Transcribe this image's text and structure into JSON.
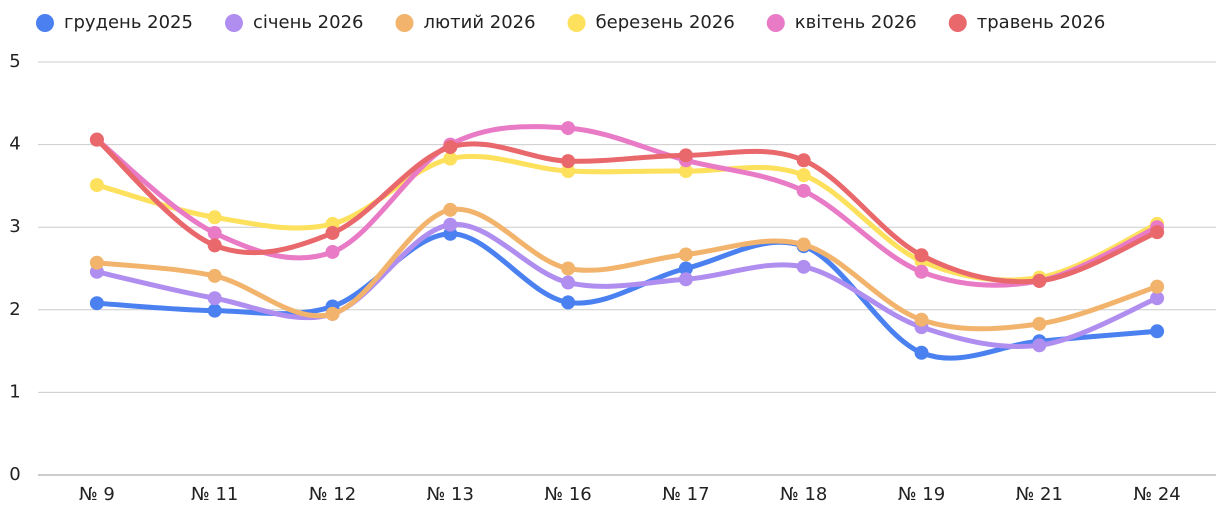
{
  "chart_data": {
    "type": "line",
    "categories": [
      "№ 9",
      "№ 11",
      "№ 12",
      "№ 13",
      "№ 16",
      "№ 17",
      "№ 18",
      "№ 19",
      "№ 21",
      "№ 24"
    ],
    "series": [
      {
        "name": "грудень 2025",
        "color": "#4a80f0",
        "values": [
          2.08,
          1.99,
          2.04,
          2.92,
          2.09,
          2.5,
          2.77,
          1.48,
          1.62,
          1.74
        ]
      },
      {
        "name": "січень 2026",
        "color": "#b08ef0",
        "values": [
          2.46,
          2.14,
          1.95,
          3.03,
          2.33,
          2.37,
          2.52,
          1.79,
          1.57,
          2.14
        ]
      },
      {
        "name": "лютий 2026",
        "color": "#f2b46c",
        "values": [
          2.57,
          2.41,
          1.95,
          3.21,
          2.5,
          2.67,
          2.79,
          1.88,
          1.83,
          2.28
        ]
      },
      {
        "name": "березень 2026",
        "color": "#fde05c",
        "values": [
          3.51,
          3.12,
          3.04,
          3.83,
          3.68,
          3.68,
          3.63,
          2.59,
          2.39,
          3.04
        ]
      },
      {
        "name": "квітень 2026",
        "color": "#e87ac6",
        "values": [
          4.06,
          2.93,
          2.7,
          4.0,
          4.2,
          3.81,
          3.44,
          2.46,
          2.35,
          3.0
        ]
      },
      {
        "name": "травень 2026",
        "color": "#e8686c",
        "values": [
          4.06,
          2.78,
          2.93,
          3.97,
          3.8,
          3.87,
          3.81,
          2.66,
          2.35,
          2.94
        ]
      }
    ],
    "ylim": [
      0,
      5
    ],
    "yticks": [
      0,
      1,
      2,
      3,
      4,
      5
    ],
    "grid": true,
    "legend": "top"
  }
}
